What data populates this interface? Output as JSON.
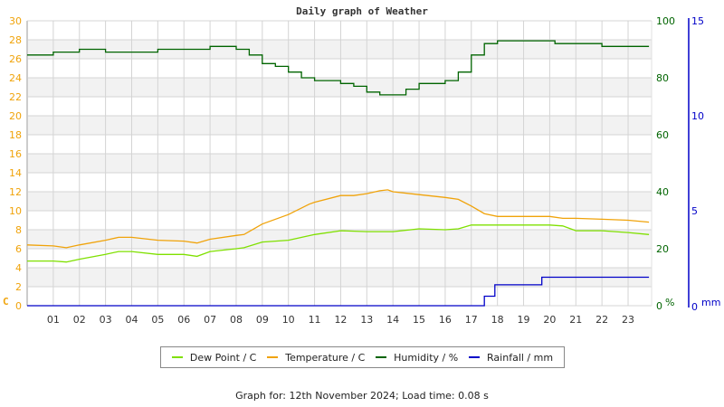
{
  "chart_data": {
    "type": "line",
    "title": "Daily graph of Weather",
    "xlabel": "",
    "x_ticks": [
      "01",
      "02",
      "03",
      "04",
      "05",
      "06",
      "07",
      "08",
      "09",
      "10",
      "11",
      "12",
      "13",
      "14",
      "15",
      "16",
      "17",
      "18",
      "19",
      "20",
      "21",
      "22",
      "23"
    ],
    "xlim": [
      0,
      24
    ],
    "grid": true,
    "legend_position": "bottom",
    "axes": {
      "left": {
        "label": "C",
        "ticks": [
          0,
          2,
          4,
          6,
          8,
          10,
          12,
          14,
          16,
          18,
          20,
          22,
          24,
          26,
          28,
          30
        ],
        "ylim": [
          0,
          30
        ],
        "color": "#f0a30a"
      },
      "right1": {
        "label": "%",
        "ticks": [
          0,
          20,
          40,
          60,
          80,
          100
        ],
        "ylim": [
          0,
          100
        ],
        "color": "#006400"
      },
      "right2": {
        "label": "mm",
        "ticks": [
          0,
          5,
          10,
          15
        ],
        "ylim": [
          0,
          15
        ],
        "color": "#0000c8"
      }
    },
    "series": [
      {
        "name": "Dew Point / C",
        "color": "#7fe000",
        "axis": "left",
        "x": [
          0,
          1,
          1.5,
          2,
          3,
          3.5,
          4,
          5,
          6,
          6.5,
          7,
          8,
          8.3,
          9,
          10,
          11,
          12,
          13,
          13.5,
          14,
          15,
          16,
          16.5,
          17,
          18,
          19,
          20,
          20.5,
          21,
          22,
          23,
          23.8
        ],
        "values": [
          4.7,
          4.7,
          4.6,
          4.9,
          5.4,
          5.7,
          5.7,
          5.4,
          5.4,
          5.2,
          5.7,
          6.0,
          6.1,
          6.7,
          6.9,
          7.5,
          7.9,
          7.8,
          7.8,
          7.8,
          8.1,
          8.0,
          8.1,
          8.5,
          8.5,
          8.5,
          8.5,
          8.4,
          7.9,
          7.9,
          7.7,
          7.5
        ]
      },
      {
        "name": "Temperature / C",
        "color": "#f0a30a",
        "axis": "left",
        "x": [
          0,
          1,
          1.5,
          2,
          3,
          3.5,
          4,
          5,
          6,
          6.5,
          7,
          8,
          8.3,
          9,
          10,
          10.8,
          11,
          12,
          12.5,
          13,
          13.5,
          13.8,
          14,
          15,
          16,
          16.5,
          17,
          17.5,
          18,
          19,
          20,
          20.5,
          21,
          22,
          23,
          23.8
        ],
        "values": [
          6.4,
          6.3,
          6.1,
          6.4,
          6.9,
          7.2,
          7.2,
          6.9,
          6.8,
          6.6,
          7.0,
          7.4,
          7.5,
          8.6,
          9.6,
          10.7,
          10.9,
          11.6,
          11.6,
          11.8,
          12.1,
          12.2,
          12.0,
          11.7,
          11.4,
          11.2,
          10.5,
          9.7,
          9.4,
          9.4,
          9.4,
          9.2,
          9.2,
          9.1,
          9.0,
          8.8
        ]
      },
      {
        "name": "Humidity / %",
        "color": "#006400",
        "axis": "right1",
        "x": [
          0,
          0.8,
          1,
          2,
          3,
          4,
          5,
          6,
          7,
          8,
          8.5,
          9,
          9.5,
          10,
          10.5,
          11,
          12,
          12.5,
          13,
          13.5,
          14,
          14.5,
          15,
          16,
          16.5,
          17,
          17.5,
          18,
          19,
          20,
          20.2,
          21,
          22,
          23,
          23.8
        ],
        "values": [
          88,
          88,
          89,
          90,
          89,
          89,
          90,
          90,
          91,
          90,
          88,
          85,
          84,
          82,
          80,
          79,
          78,
          77,
          75,
          74,
          74,
          76,
          78,
          79,
          82,
          88,
          92,
          93,
          93,
          93,
          92,
          92,
          91,
          91,
          91
        ]
      },
      {
        "name": "Rainfall / mm",
        "color": "#0000c8",
        "axis": "right2",
        "x": [
          0,
          17.4,
          17.5,
          17.8,
          17.9,
          19.6,
          19.7,
          23.8
        ],
        "values": [
          0,
          0,
          0.5,
          0.5,
          1.1,
          1.1,
          1.5,
          1.5
        ]
      }
    ]
  },
  "header": {
    "title": "Daily graph of Weather"
  },
  "axis_labels": {
    "left_unit": "C",
    "right1_unit": "%",
    "right2_unit": "mm",
    "left_ticks": [
      "0",
      "2",
      "4",
      "6",
      "8",
      "10",
      "12",
      "14",
      "16",
      "18",
      "20",
      "22",
      "24",
      "26",
      "28",
      "30"
    ],
    "right1_ticks": [
      "0",
      "20",
      "40",
      "60",
      "80",
      "100"
    ],
    "right2_ticks": [
      "0",
      "5",
      "10",
      "15"
    ],
    "x_ticks": [
      "01",
      "02",
      "03",
      "04",
      "05",
      "06",
      "07",
      "08",
      "09",
      "10",
      "11",
      "12",
      "13",
      "14",
      "15",
      "16",
      "17",
      "18",
      "19",
      "20",
      "21",
      "22",
      "23"
    ]
  },
  "legend": {
    "items": [
      {
        "label": "Dew Point / C",
        "color": "#7fe000"
      },
      {
        "label": "Temperature / C",
        "color": "#f0a30a"
      },
      {
        "label": "Humidity / %",
        "color": "#006400"
      },
      {
        "label": "Rainfall / mm",
        "color": "#0000c8"
      }
    ]
  },
  "footer": {
    "text": "Graph for: 12th November 2024; Load time: 0.08 s"
  }
}
